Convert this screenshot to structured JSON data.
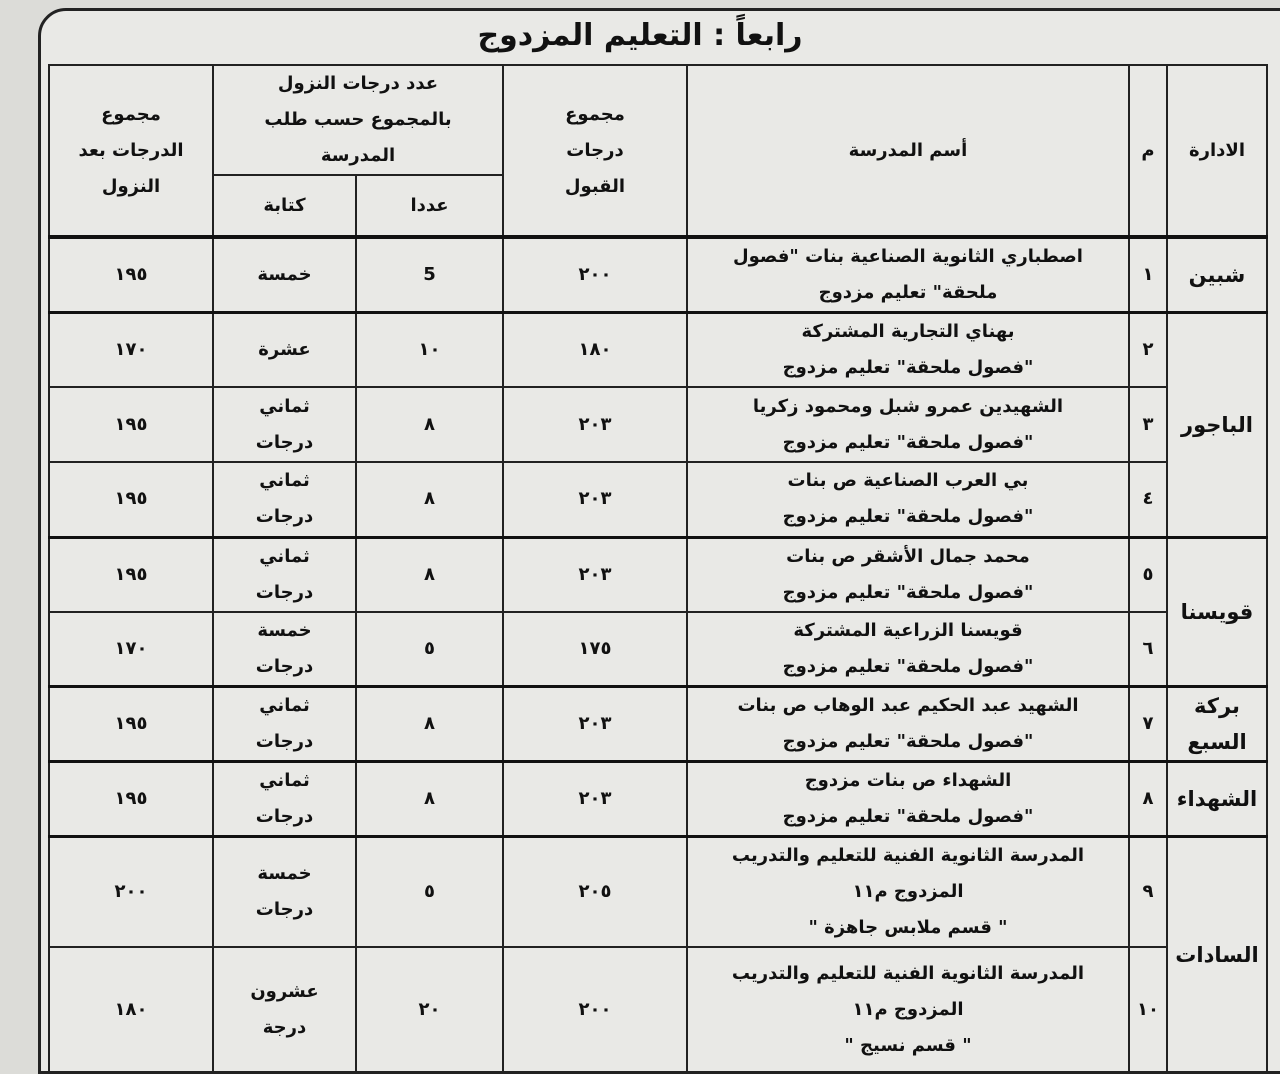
{
  "title": "رابعاً : التعليم المزدوج",
  "headers": {
    "admin": "الادارة",
    "num": "م",
    "school": "أسم المدرسة",
    "total_accept": "مجموع درجات القبول",
    "reduction_group": "عدد درجات النزول بالمجموع حسب طلب المدرسة",
    "in_numbers": "عددا",
    "in_words": "كتابة",
    "total_after": "مجموع الدرجات بعد النزول"
  },
  "rows": [
    {
      "admin": "شبين",
      "num": "١",
      "school": [
        "اصطباري الثانوية الصناعية بنات \"فصول",
        "ملحقة\" تعليم مزدوج"
      ],
      "accept": "٢٠٠",
      "num_deg": "5",
      "words": "خمسة",
      "after": "١٩٥"
    },
    {
      "admin": "الباجور",
      "num": "٢",
      "school": [
        "بهناي التجارية المشتركة",
        "\"فصول ملحقة\" تعليم مزدوج"
      ],
      "accept": "١٨٠",
      "num_deg": "١٠",
      "words": "عشرة",
      "after": "١٧٠"
    },
    {
      "num": "٣",
      "school": [
        "الشهيدين عمرو شبل ومحمود زكريا",
        "\"فصول ملحقة\" تعليم مزدوج"
      ],
      "accept": "٢٠٣",
      "num_deg": "٨",
      "words": "ثماني درجات",
      "after": "١٩٥"
    },
    {
      "num": "٤",
      "school": [
        "بي العرب الصناعية ص بنات",
        "\"فصول ملحقة\" تعليم مزدوج"
      ],
      "accept": "٢٠٣",
      "num_deg": "٨",
      "words": "ثماني درجات",
      "after": "١٩٥"
    },
    {
      "admin": "قويسنا",
      "num": "٥",
      "school": [
        "محمد جمال الأشقر ص بنات",
        "\"فصول ملحقة\" تعليم مزدوج"
      ],
      "accept": "٢٠٣",
      "num_deg": "٨",
      "words": "ثماني درجات",
      "after": "١٩٥"
    },
    {
      "num": "٦",
      "school": [
        "قويسنا الزراعية المشتركة",
        "\"فصول ملحقة\" تعليم مزدوج"
      ],
      "accept": "١٧٥",
      "num_deg": "٥",
      "words": "خمسة درجات",
      "after": "١٧٠"
    },
    {
      "admin": "بركة السبع",
      "num": "٧",
      "school": [
        "الشهيد عبد الحكيم عبد الوهاب ص بنات",
        "\"فصول ملحقة\" تعليم مزدوج"
      ],
      "accept": "٢٠٣",
      "num_deg": "٨",
      "words": "ثماني درجات",
      "after": "١٩٥"
    },
    {
      "admin": "الشهداء",
      "num": "٨",
      "school": [
        "الشهداء ص بنات مزدوج",
        "\"فصول ملحقة\" تعليم مزدوج"
      ],
      "accept": "٢٠٣",
      "num_deg": "٨",
      "words": "ثماني درجات",
      "after": "١٩٥"
    },
    {
      "admin": "السادات",
      "num": "٩",
      "school": [
        "المدرسة الثانوية الفنية للتعليم والتدريب",
        "المزدوج م١١",
        "\" قسم ملابس جاهزة \""
      ],
      "accept": "٢٠٥",
      "num_deg": "٥",
      "words": "خمسة درجات",
      "after": "٢٠٠"
    },
    {
      "num": "١٠",
      "school": [
        "المدرسة الثانوية الفنية للتعليم والتدريب",
        "المزدوج م١١",
        "\" قسم نسيج \""
      ],
      "accept": "٢٠٠",
      "num_deg": "٢٠",
      "words": "عشرون درجة",
      "after": "١٨٠"
    }
  ]
}
